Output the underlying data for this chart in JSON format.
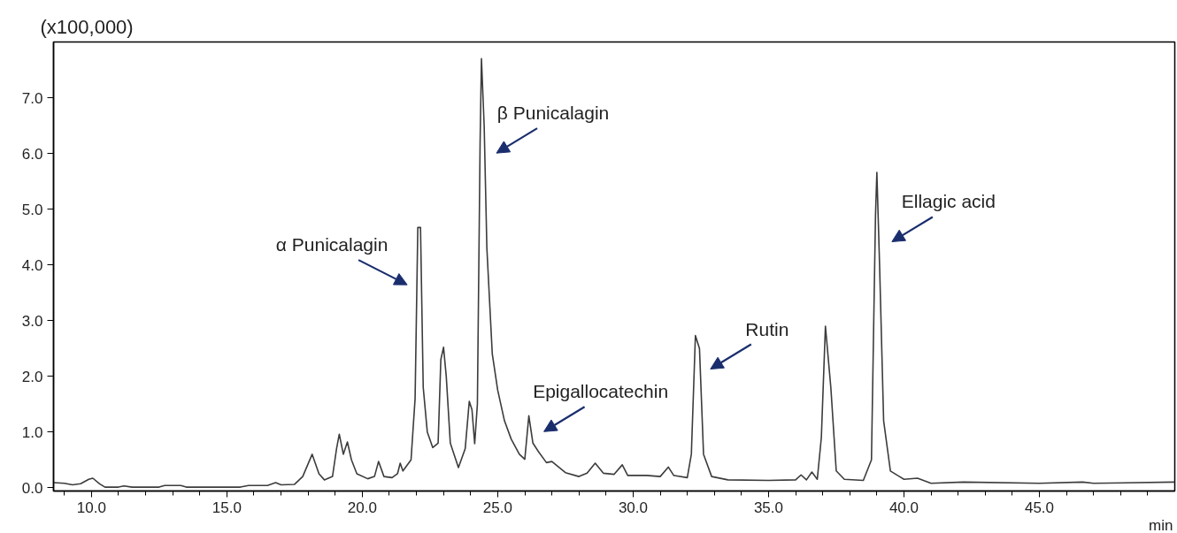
{
  "chart_data": {
    "type": "line",
    "xlabel": "min",
    "ylabel": "(x100,000)",
    "x": [
      8.6,
      9.0,
      9.3,
      9.6,
      9.9,
      10.05,
      10.3,
      10.5,
      11.0,
      11.2,
      11.5,
      12.5,
      12.7,
      13.3,
      13.5,
      15.5,
      15.8,
      16.5,
      16.8,
      17.0,
      17.5,
      17.8,
      18.15,
      18.4,
      18.6,
      18.9,
      19.05,
      19.15,
      19.3,
      19.45,
      19.6,
      19.8,
      20.2,
      20.45,
      20.6,
      20.8,
      21.1,
      21.3,
      21.4,
      21.5,
      21.8,
      21.95,
      22.05,
      22.15,
      22.25,
      22.4,
      22.6,
      22.8,
      22.9,
      23.0,
      23.1,
      23.25,
      23.55,
      23.8,
      23.95,
      24.05,
      24.15,
      24.25,
      24.35,
      24.4,
      24.5,
      24.6,
      24.8,
      25.0,
      25.25,
      25.5,
      25.8,
      26.0,
      26.15,
      26.3,
      26.5,
      26.8,
      27.0,
      27.5,
      28.0,
      28.3,
      28.6,
      28.9,
      29.3,
      29.6,
      29.8,
      30.5,
      31.0,
      31.3,
      31.5,
      32.0,
      32.15,
      32.3,
      32.45,
      32.6,
      32.9,
      33.5,
      35.0,
      36.0,
      36.2,
      36.4,
      36.6,
      36.8,
      36.95,
      37.1,
      37.3,
      37.5,
      37.8,
      38.5,
      38.8,
      38.95,
      39.0,
      39.1,
      39.25,
      39.5,
      40.0,
      40.5,
      41.0,
      42.2,
      45.0,
      46.6,
      47.0,
      50.0
    ],
    "series": [
      {
        "color": "#3c3c3c",
        "values": [
          0.09,
          0.08,
          0.05,
          0.07,
          0.15,
          0.17,
          0.07,
          0.01,
          0.01,
          0.03,
          0.01,
          0.01,
          0.04,
          0.04,
          0.01,
          0.01,
          0.04,
          0.04,
          0.09,
          0.05,
          0.06,
          0.2,
          0.6,
          0.25,
          0.14,
          0.2,
          0.7,
          0.96,
          0.6,
          0.82,
          0.5,
          0.25,
          0.16,
          0.2,
          0.47,
          0.2,
          0.18,
          0.25,
          0.44,
          0.3,
          0.5,
          1.6,
          4.67,
          4.67,
          1.8,
          1.0,
          0.72,
          0.8,
          2.3,
          2.52,
          2.0,
          0.8,
          0.36,
          0.7,
          1.55,
          1.4,
          0.79,
          1.5,
          6.2,
          7.7,
          6.5,
          4.3,
          2.4,
          1.75,
          1.2,
          0.87,
          0.6,
          0.51,
          1.29,
          0.8,
          0.65,
          0.45,
          0.47,
          0.27,
          0.2,
          0.26,
          0.44,
          0.26,
          0.24,
          0.41,
          0.22,
          0.22,
          0.2,
          0.37,
          0.22,
          0.18,
          0.6,
          2.73,
          2.5,
          0.6,
          0.2,
          0.14,
          0.13,
          0.14,
          0.23,
          0.14,
          0.28,
          0.15,
          0.9,
          2.9,
          1.8,
          0.3,
          0.15,
          0.13,
          0.5,
          4.9,
          5.66,
          4.0,
          1.2,
          0.3,
          0.15,
          0.17,
          0.08,
          0.1,
          0.08,
          0.1,
          0.08,
          0.1
        ]
      }
    ],
    "xlim": [
      8.6,
      50.0
    ],
    "ylim": [
      -0.06,
      8.0
    ],
    "xticks": [
      {
        "value": 9,
        "label": null
      },
      {
        "value": 10,
        "label": "10.0"
      },
      {
        "value": 11,
        "label": null
      },
      {
        "value": 12,
        "label": null
      },
      {
        "value": 13,
        "label": null
      },
      {
        "value": 14,
        "label": null
      },
      {
        "value": 15,
        "label": "15.0"
      },
      {
        "value": 16,
        "label": null
      },
      {
        "value": 17,
        "label": null
      },
      {
        "value": 18,
        "label": null
      },
      {
        "value": 19,
        "label": null
      },
      {
        "value": 20,
        "label": "20.0"
      },
      {
        "value": 21,
        "label": null
      },
      {
        "value": 22,
        "label": null
      },
      {
        "value": 23,
        "label": null
      },
      {
        "value": 24,
        "label": null
      },
      {
        "value": 25,
        "label": "25.0"
      },
      {
        "value": 26,
        "label": null
      },
      {
        "value": 27,
        "label": null
      },
      {
        "value": 28,
        "label": null
      },
      {
        "value": 29,
        "label": null
      },
      {
        "value": 30,
        "label": "30.0"
      },
      {
        "value": 31,
        "label": null
      },
      {
        "value": 32,
        "label": null
      },
      {
        "value": 33,
        "label": null
      },
      {
        "value": 34,
        "label": null
      },
      {
        "value": 35,
        "label": "35.0"
      },
      {
        "value": 36,
        "label": null
      },
      {
        "value": 37,
        "label": null
      },
      {
        "value": 38,
        "label": null
      },
      {
        "value": 39,
        "label": null
      },
      {
        "value": 40,
        "label": "40.0"
      },
      {
        "value": 41,
        "label": null
      },
      {
        "value": 42,
        "label": null
      },
      {
        "value": 43,
        "label": null
      },
      {
        "value": 44,
        "label": null
      },
      {
        "value": 45,
        "label": "45.0"
      },
      {
        "value": 46,
        "label": null
      },
      {
        "value": 47,
        "label": null
      },
      {
        "value": 48,
        "label": null
      },
      {
        "value": 49,
        "label": null
      }
    ],
    "yticks": [
      {
        "value": 0,
        "label": "0.0"
      },
      {
        "value": 1,
        "label": "1.0"
      },
      {
        "value": 2,
        "label": "2.0"
      },
      {
        "value": 3,
        "label": "3.0"
      },
      {
        "value": 4,
        "label": "4.0"
      },
      {
        "value": 5,
        "label": "5.0"
      },
      {
        "value": 6,
        "label": "6.0"
      },
      {
        "value": 7,
        "label": "7.0"
      }
    ],
    "annotations": [
      {
        "text": "α Punicalagin",
        "x": 22.05,
        "y": 4.67
      },
      {
        "text": "β Punicalagin",
        "x": 24.4,
        "y": 7.7
      },
      {
        "text": "Epigallocatechin",
        "x": 26.15,
        "y": 1.29
      },
      {
        "text": "Rutin",
        "x": 32.3,
        "y": 2.73
      },
      {
        "text": "Ellagic acid",
        "x": 39.0,
        "y": 5.66
      }
    ],
    "grid": false,
    "marker": "none",
    "line_style": "solid"
  }
}
